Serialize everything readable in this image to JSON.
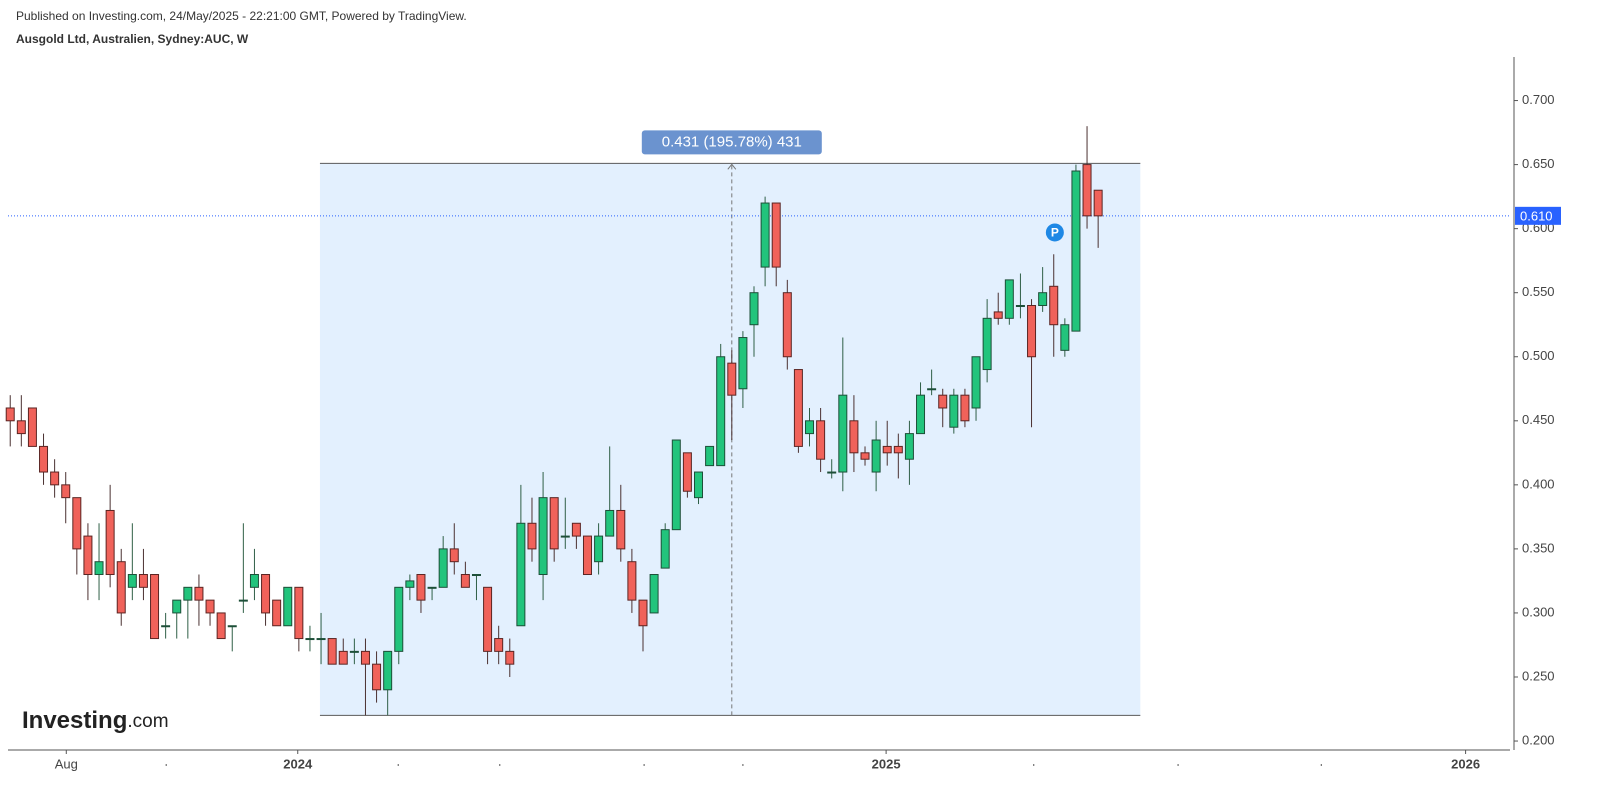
{
  "header": {
    "published": "Published on Investing.com, 24/May/2025 - 22:21:00 GMT, Powered by TradingView.",
    "symbol": "Ausgold Ltd, Australien, Sydney:AUC, W"
  },
  "logo": {
    "name": "Investing",
    "suffix": ".com"
  },
  "chart_data": {
    "type": "candlestick",
    "open": [
      0.46,
      0.45,
      0.46,
      0.43,
      0.41,
      0.4,
      0.39,
      0.36,
      0.33,
      0.38,
      0.34,
      0.32,
      0.33,
      0.33,
      0.29,
      0.3,
      0.31,
      0.32,
      0.31,
      0.3,
      0.29,
      0.31,
      0.32,
      0.33,
      0.31,
      0.29,
      0.32,
      0.28,
      0.28,
      0.28,
      0.27,
      0.27,
      0.27,
      0.26,
      0.24,
      0.27,
      0.32,
      0.33,
      0.32,
      0.32,
      0.35,
      0.33,
      0.33,
      0.32,
      0.28,
      0.27,
      0.29,
      0.37,
      0.33,
      0.39,
      0.36,
      0.37,
      0.36,
      0.34,
      0.36,
      0.38,
      0.34,
      0.31,
      0.3,
      0.335,
      0.365,
      0.425,
      0.39,
      0.415,
      0.415,
      0.495,
      0.475,
      0.525,
      0.57,
      0.62,
      0.55,
      0.49,
      0.44,
      0.45,
      0.41,
      0.41,
      0.45,
      0.425,
      0.41,
      0.43,
      0.43,
      0.42,
      0.44,
      0.475,
      0.47,
      0.445,
      0.47,
      0.46,
      0.49,
      0.535,
      0.53,
      0.54,
      0.54,
      0.54,
      0.555,
      0.505,
      0.52,
      0.65,
      0.63
    ],
    "high": [
      0.47,
      0.47,
      0.46,
      0.44,
      0.42,
      0.41,
      0.39,
      0.37,
      0.37,
      0.4,
      0.35,
      0.37,
      0.35,
      0.33,
      0.3,
      0.31,
      0.32,
      0.33,
      0.31,
      0.3,
      0.29,
      0.37,
      0.35,
      0.33,
      0.31,
      0.32,
      0.32,
      0.29,
      0.3,
      0.28,
      0.28,
      0.28,
      0.28,
      0.27,
      0.27,
      0.32,
      0.33,
      0.33,
      0.32,
      0.36,
      0.37,
      0.34,
      0.33,
      0.32,
      0.29,
      0.28,
      0.4,
      0.39,
      0.41,
      0.39,
      0.39,
      0.37,
      0.36,
      0.37,
      0.43,
      0.4,
      0.35,
      0.31,
      0.33,
      0.37,
      0.435,
      0.425,
      0.41,
      0.43,
      0.51,
      0.505,
      0.52,
      0.555,
      0.625,
      0.62,
      0.56,
      0.49,
      0.46,
      0.46,
      0.42,
      0.515,
      0.47,
      0.43,
      0.45,
      0.45,
      0.44,
      0.45,
      0.48,
      0.49,
      0.475,
      0.475,
      0.475,
      0.5,
      0.545,
      0.55,
      0.56,
      0.565,
      0.545,
      0.57,
      0.58,
      0.53,
      0.65,
      0.68,
      0.63
    ],
    "low": [
      0.43,
      0.43,
      0.43,
      0.4,
      0.39,
      0.37,
      0.33,
      0.31,
      0.31,
      0.32,
      0.29,
      0.31,
      0.31,
      0.28,
      0.28,
      0.28,
      0.28,
      0.29,
      0.29,
      0.28,
      0.27,
      0.3,
      0.31,
      0.29,
      0.29,
      0.29,
      0.27,
      0.27,
      0.26,
      0.26,
      0.26,
      0.26,
      0.22,
      0.23,
      0.22,
      0.26,
      0.31,
      0.3,
      0.31,
      0.32,
      0.33,
      0.32,
      0.31,
      0.26,
      0.26,
      0.25,
      0.29,
      0.34,
      0.31,
      0.34,
      0.35,
      0.35,
      0.33,
      0.33,
      0.36,
      0.34,
      0.3,
      0.27,
      0.3,
      0.335,
      0.365,
      0.39,
      0.385,
      0.415,
      0.415,
      0.435,
      0.46,
      0.5,
      0.555,
      0.555,
      0.49,
      0.425,
      0.43,
      0.41,
      0.405,
      0.395,
      0.41,
      0.415,
      0.395,
      0.415,
      0.405,
      0.4,
      0.44,
      0.47,
      0.445,
      0.44,
      0.445,
      0.45,
      0.48,
      0.525,
      0.525,
      0.53,
      0.445,
      0.535,
      0.5,
      0.5,
      0.52,
      0.6,
      0.585
    ],
    "close": [
      0.45,
      0.44,
      0.43,
      0.41,
      0.4,
      0.39,
      0.35,
      0.33,
      0.34,
      0.33,
      0.3,
      0.33,
      0.32,
      0.28,
      0.29,
      0.31,
      0.32,
      0.31,
      0.3,
      0.28,
      0.29,
      0.31,
      0.33,
      0.3,
      0.29,
      0.32,
      0.28,
      0.28,
      0.28,
      0.26,
      0.26,
      0.27,
      0.26,
      0.24,
      0.27,
      0.32,
      0.325,
      0.31,
      0.32,
      0.35,
      0.34,
      0.32,
      0.33,
      0.27,
      0.27,
      0.26,
      0.37,
      0.35,
      0.39,
      0.35,
      0.36,
      0.36,
      0.33,
      0.36,
      0.38,
      0.35,
      0.31,
      0.29,
      0.33,
      0.365,
      0.435,
      0.395,
      0.41,
      0.43,
      0.5,
      0.47,
      0.515,
      0.55,
      0.62,
      0.57,
      0.5,
      0.43,
      0.45,
      0.42,
      0.41,
      0.47,
      0.425,
      0.42,
      0.435,
      0.425,
      0.425,
      0.44,
      0.47,
      0.475,
      0.46,
      0.47,
      0.45,
      0.5,
      0.53,
      0.53,
      0.56,
      0.54,
      0.5,
      0.55,
      0.525,
      0.525,
      0.645,
      0.61,
      0.61
    ],
    "up_color": "#22c47c",
    "down_color": "#f0625a",
    "xlim": [
      -0.2,
      135.1
    ],
    "xticks": [
      {
        "value": 5.05,
        "label": "Aug"
      },
      {
        "value": 25.9,
        "label": "2024"
      },
      {
        "value": 78.9,
        "label": "2025"
      },
      {
        "value": 131.1,
        "label": "2026"
      }
    ],
    "xminor_ticks": [
      14.05,
      34.95,
      44.1,
      57.1,
      66.0,
      92.2,
      105.2,
      118.1
    ],
    "ylim": [
      0.193,
      0.734
    ],
    "yticks": [
      {
        "value": 0.2,
        "label": "0.200"
      },
      {
        "value": 0.25,
        "label": "0.250"
      },
      {
        "value": 0.3,
        "label": "0.300"
      },
      {
        "value": 0.35,
        "label": "0.350"
      },
      {
        "value": 0.4,
        "label": "0.400"
      },
      {
        "value": 0.45,
        "label": "0.450"
      },
      {
        "value": 0.5,
        "label": "0.500"
      },
      {
        "value": 0.55,
        "label": "0.550"
      },
      {
        "value": 0.6,
        "label": "0.600"
      },
      {
        "value": 0.65,
        "label": "0.650"
      },
      {
        "value": 0.7,
        "label": "0.700"
      }
    ],
    "price_line": {
      "value": 0.61,
      "label": "0.610",
      "color": "#2962ff"
    },
    "range_box": {
      "x": [
        27.9,
        101.8
      ],
      "y": [
        0.22,
        0.651
      ],
      "arrow_x": 65.0,
      "label": "0.431 (195.78%) 431"
    },
    "marker": {
      "label": "P",
      "x": 94.1,
      "y": 0.597,
      "color": "#1e88e5"
    }
  }
}
